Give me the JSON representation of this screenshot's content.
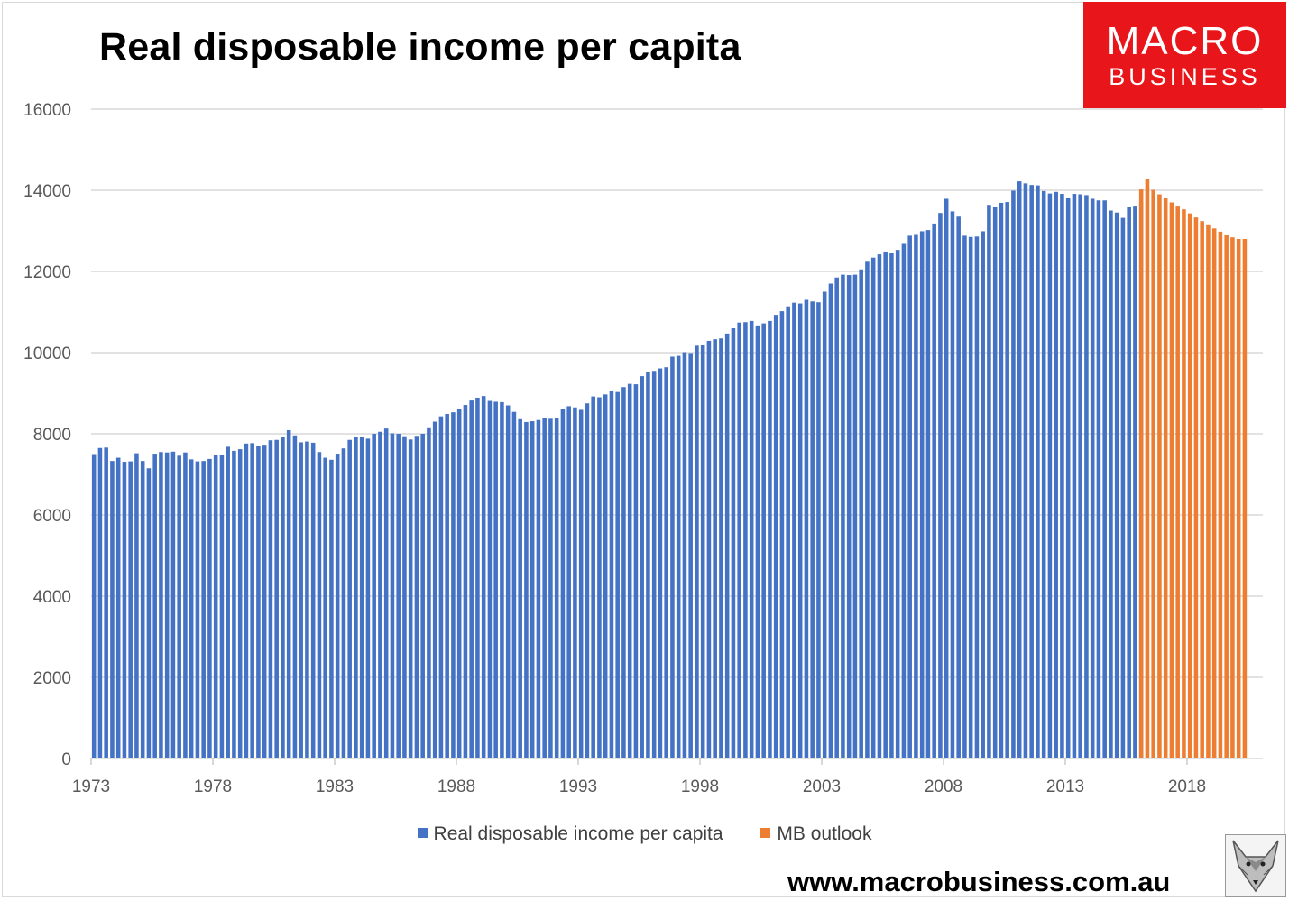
{
  "header": {
    "title": "Real disposable income per capita"
  },
  "logo": {
    "line1": "MACRO",
    "line2": "BUSINESS"
  },
  "footer": {
    "website": "www.macrobusiness.com.au"
  },
  "colors": {
    "series_actual": "#4472c4",
    "series_outlook": "#ed7d31",
    "gridline": "#d9d9d9",
    "logo_bg": "#e8151b"
  },
  "chart_data": {
    "type": "bar",
    "title": "Real disposable income per capita",
    "xlabel": "",
    "ylabel": "",
    "ylim": [
      0,
      16000
    ],
    "yticks": [
      "0",
      "2000",
      "4000",
      "6000",
      "8000",
      "10000",
      "12000",
      "14000",
      "16000"
    ],
    "xticks": [
      "1973",
      "1978",
      "1983",
      "1988",
      "1993",
      "1998",
      "2003",
      "2008",
      "2013",
      "2018"
    ],
    "x_start": "1973 Q1",
    "frequency": "quarterly",
    "grid": true,
    "legend_position": "bottom",
    "series": [
      {
        "name": "Real disposable income per capita",
        "color": "#4472c4",
        "start": "1973 Q1",
        "values": [
          7500,
          7650,
          7660,
          7330,
          7410,
          7310,
          7320,
          7520,
          7330,
          7150,
          7510,
          7550,
          7540,
          7560,
          7460,
          7540,
          7370,
          7320,
          7330,
          7380,
          7470,
          7480,
          7680,
          7580,
          7620,
          7760,
          7770,
          7710,
          7730,
          7840,
          7850,
          7920,
          8090,
          7960,
          7790,
          7810,
          7780,
          7550,
          7410,
          7360,
          7510,
          7640,
          7850,
          7920,
          7920,
          7880,
          8000,
          8050,
          8130,
          8010,
          8000,
          7940,
          7860,
          7950,
          8000,
          8160,
          8300,
          8430,
          8490,
          8530,
          8610,
          8710,
          8820,
          8890,
          8930,
          8810,
          8790,
          8780,
          8700,
          8540,
          8360,
          8290,
          8310,
          8340,
          8380,
          8370,
          8400,
          8620,
          8680,
          8650,
          8590,
          8750,
          8920,
          8900,
          8970,
          9060,
          9030,
          9150,
          9230,
          9220,
          9420,
          9520,
          9550,
          9610,
          9640,
          9900,
          9920,
          10010,
          9990,
          10170,
          10200,
          10290,
          10330,
          10350,
          10470,
          10600,
          10740,
          10750,
          10780,
          10670,
          10720,
          10780,
          10930,
          11020,
          11140,
          11230,
          11210,
          11300,
          11260,
          11240,
          11500,
          11700,
          11850,
          11920,
          11910,
          11920,
          12050,
          12260,
          12340,
          12420,
          12490,
          12450,
          12530,
          12700,
          12880,
          12900,
          12990,
          13020,
          13180,
          13440,
          13790,
          13480,
          13350,
          12880,
          12850,
          12860,
          12990,
          13640,
          13590,
          13690,
          13710,
          13990,
          14220,
          14170,
          14130,
          14120,
          13980,
          13920,
          13960,
          13910,
          13820,
          13910,
          13900,
          13880,
          13790,
          13750,
          13750,
          13500,
          13450,
          13320,
          13590,
          13620,
          13710
        ]
      },
      {
        "name": "MB outlook",
        "color": "#ed7d31",
        "start": "2016 Q1",
        "values": [
          14020,
          14280,
          14010,
          13900,
          13800,
          13700,
          13620,
          13530,
          13430,
          13330,
          13240,
          13160,
          13060,
          12980,
          12890,
          12840,
          12800,
          12800
        ]
      }
    ]
  }
}
